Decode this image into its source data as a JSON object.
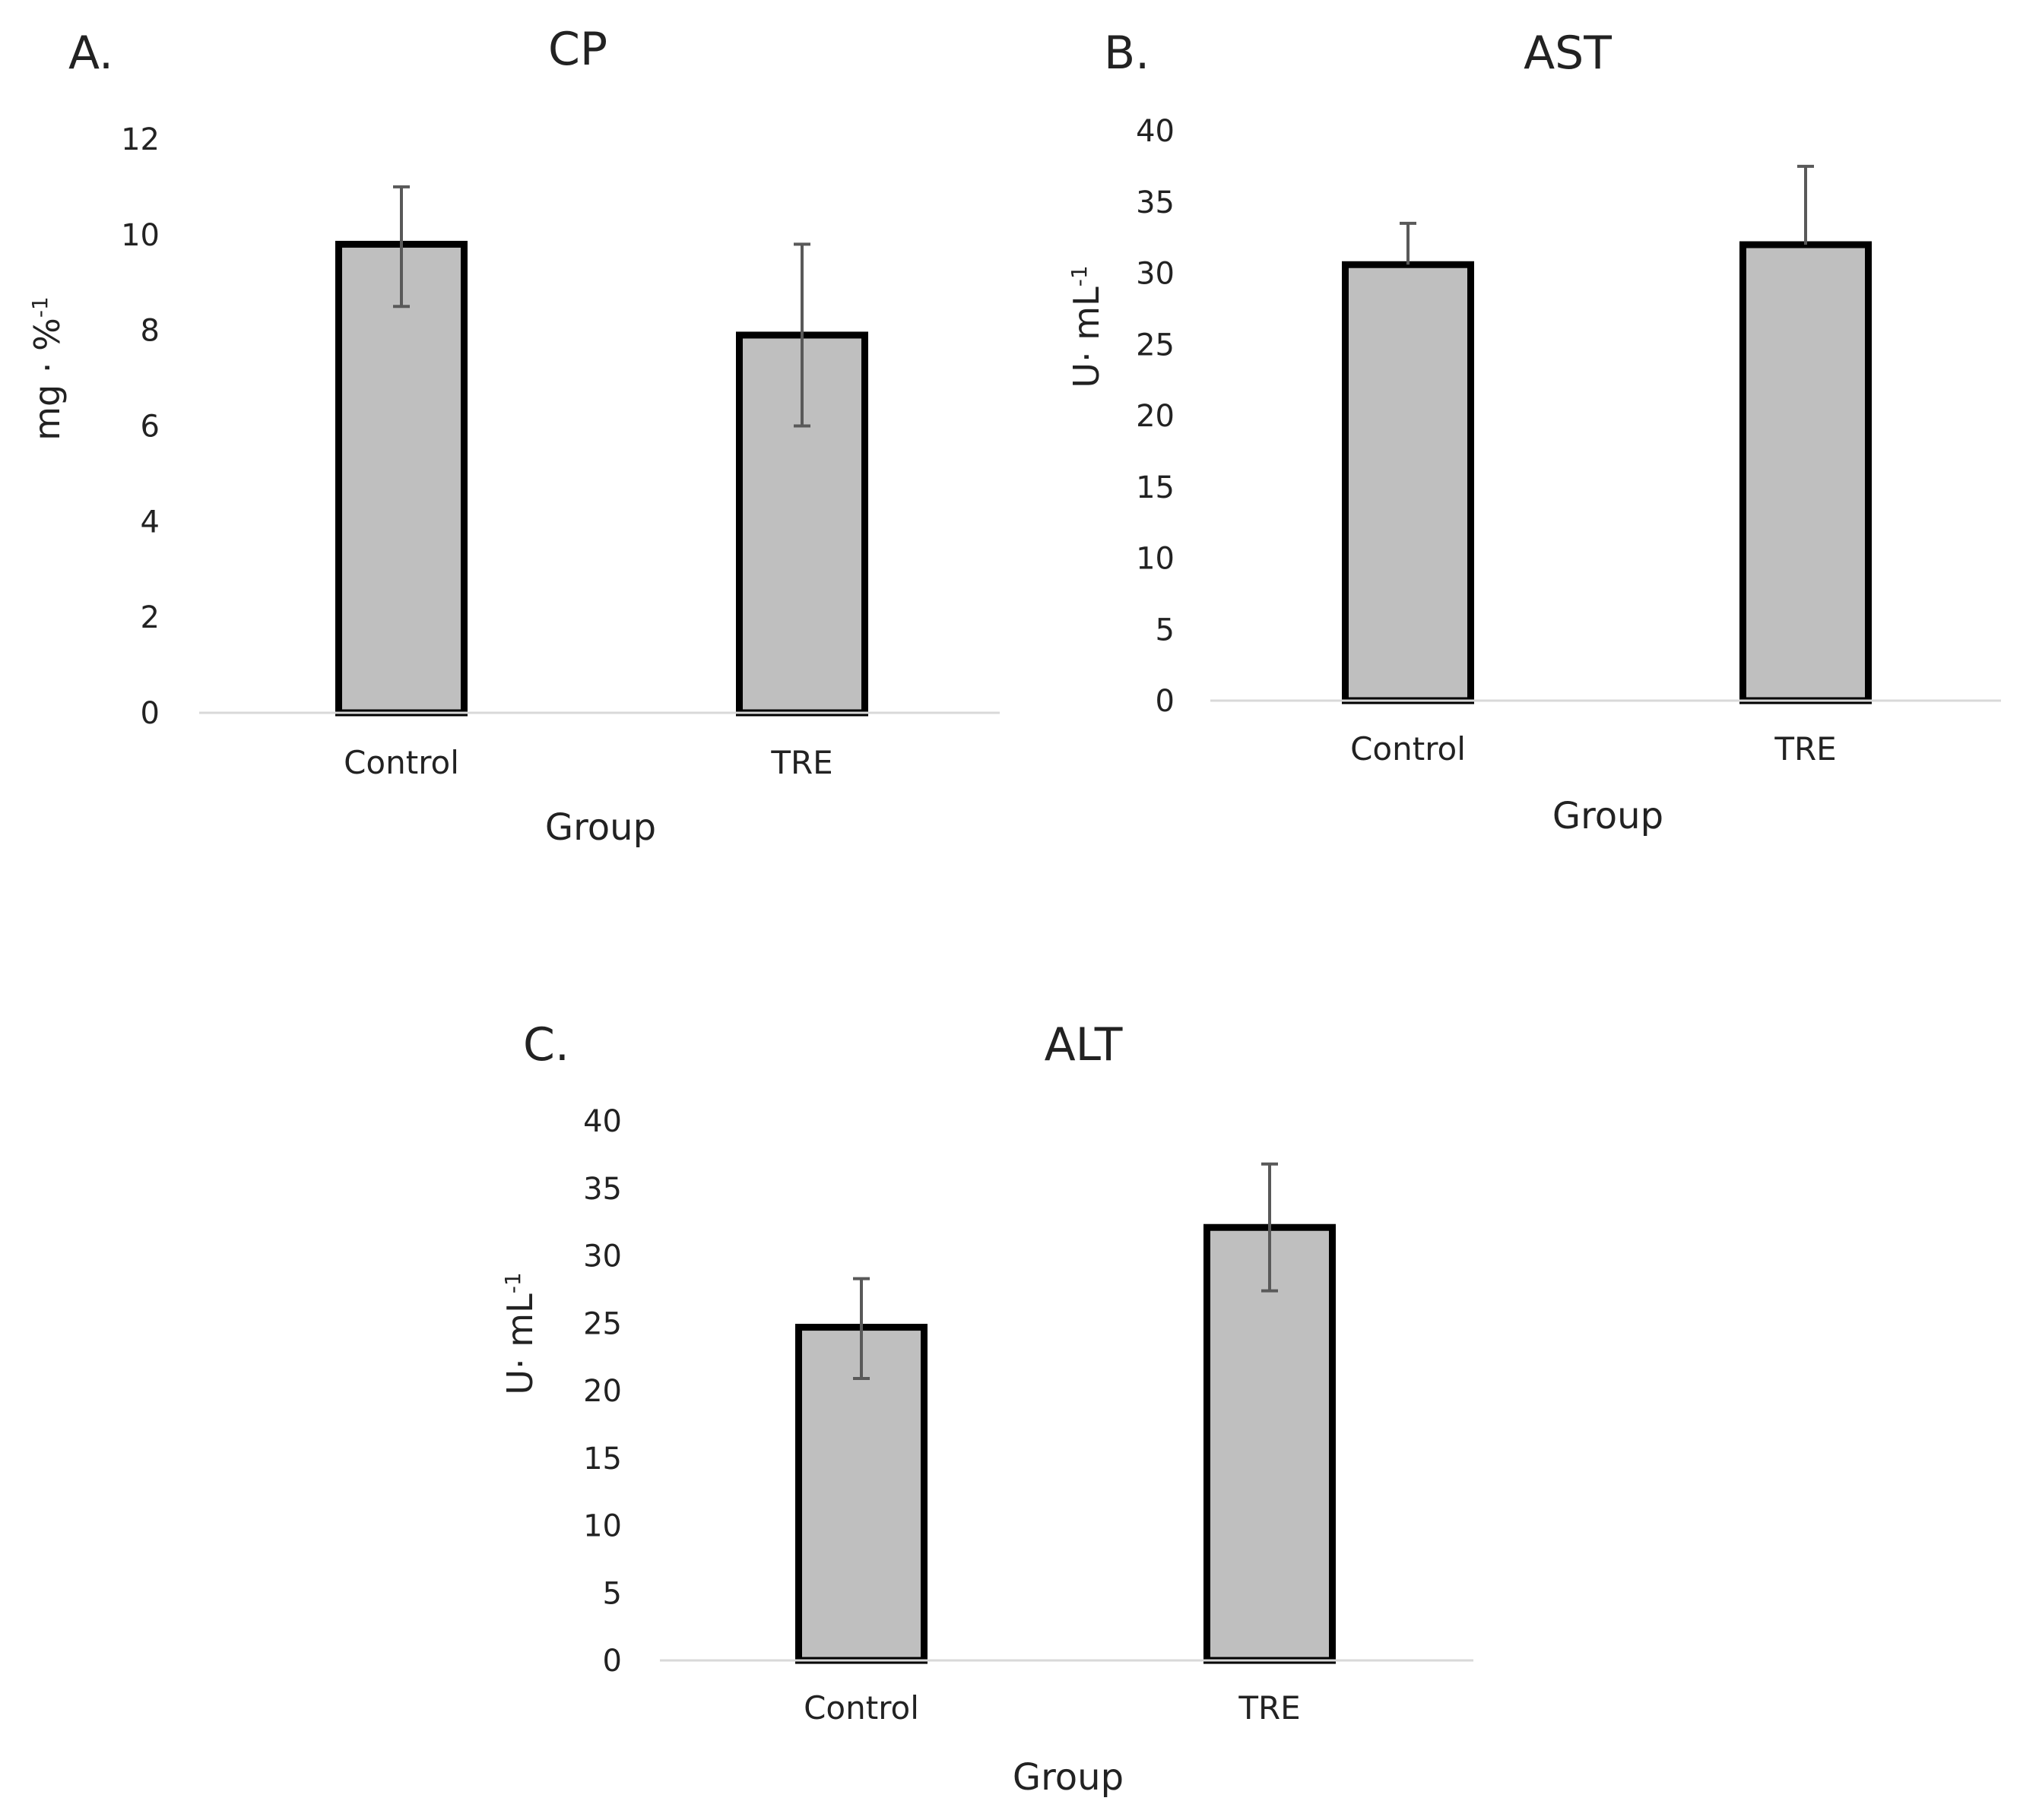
{
  "figure": {
    "panels": [
      {
        "letter": "A.",
        "title": "CP",
        "ylabel": "mg · %",
        "ylabel_exponent": "-1"
      },
      {
        "letter": "B.",
        "title": "AST",
        "ylabel": "U· mL",
        "ylabel_exponent": "-1"
      },
      {
        "letter": "C.",
        "title": "ALT",
        "ylabel": "U· mL",
        "ylabel_exponent": "-1"
      }
    ]
  },
  "chart_data": [
    {
      "type": "bar",
      "panel": "A.",
      "title": "CP",
      "xlabel": "Group",
      "ylabel": "mg · %-1",
      "categories": [
        "Control",
        "TRE"
      ],
      "values": [
        9.8,
        7.9
      ],
      "error_upper": [
        11.0,
        9.8
      ],
      "error_lower": [
        8.5,
        6.0
      ],
      "ylim": [
        0,
        12
      ],
      "yticks": [
        0,
        2,
        4,
        6,
        8,
        10,
        12
      ],
      "grid": false,
      "legend": "none"
    },
    {
      "type": "bar",
      "panel": "B.",
      "title": "AST",
      "xlabel": "Group",
      "ylabel": "U· mL-1",
      "categories": [
        "Control",
        "TRE"
      ],
      "values": [
        30.6,
        32.0
      ],
      "error_upper": [
        33.5,
        37.5
      ],
      "error_lower": [
        30.6,
        32.0
      ],
      "ylim": [
        0,
        40
      ],
      "yticks": [
        0,
        5,
        10,
        15,
        20,
        25,
        30,
        35,
        40
      ],
      "grid": false,
      "legend": "none"
    },
    {
      "type": "bar",
      "panel": "C.",
      "title": "ALT",
      "xlabel": "Group",
      "ylabel": "U· mL-1",
      "categories": [
        "Control",
        "TRE"
      ],
      "values": [
        24.7,
        32.1
      ],
      "error_upper": [
        28.3,
        36.8
      ],
      "error_lower": [
        20.9,
        27.4
      ],
      "ylim": [
        0,
        40
      ],
      "yticks": [
        0,
        5,
        10,
        15,
        20,
        25,
        30,
        35,
        40
      ],
      "grid": false,
      "legend": "none"
    }
  ]
}
